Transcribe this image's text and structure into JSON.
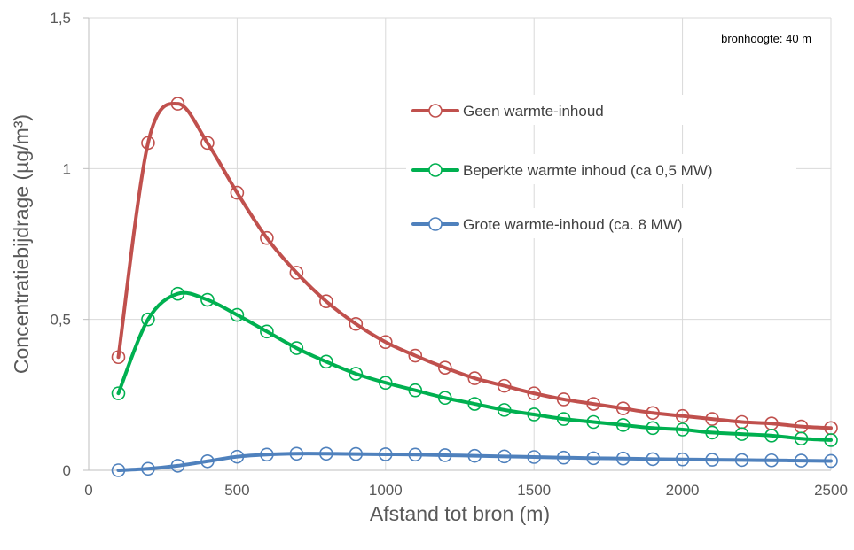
{
  "chart_data": {
    "type": "line",
    "title": "",
    "xlabel": "Afstand tot bron (m)",
    "ylabel": "Concentratiebijdrage  (µg/m³)",
    "xlim": [
      0,
      2500
    ],
    "ylim": [
      0,
      1.5
    ],
    "x_ticks": [
      0,
      500,
      1000,
      1500,
      2000,
      2500
    ],
    "x_tick_labels": [
      "0",
      "500",
      "1000",
      "1500",
      "2000",
      "2500"
    ],
    "y_ticks": [
      0,
      0.5,
      1,
      1.5
    ],
    "y_tick_labels": [
      "0",
      "0,5",
      "1",
      "1,5"
    ],
    "grid": true,
    "legend_position": "right",
    "annotation": "bronhoogte: 40 m",
    "x": [
      100,
      200,
      300,
      400,
      500,
      600,
      700,
      800,
      900,
      1000,
      1100,
      1200,
      1300,
      1400,
      1500,
      1600,
      1700,
      1800,
      1900,
      2000,
      2100,
      2200,
      2300,
      2400,
      2500
    ],
    "series": [
      {
        "name": "Geen warmte-inhoud",
        "color": "#c0504d",
        "values": [
          0.375,
          1.085,
          1.215,
          1.085,
          0.92,
          0.77,
          0.655,
          0.56,
          0.485,
          0.425,
          0.38,
          0.34,
          0.305,
          0.28,
          0.255,
          0.235,
          0.22,
          0.205,
          0.19,
          0.18,
          0.17,
          0.16,
          0.155,
          0.145,
          0.14
        ]
      },
      {
        "name": "Beperkte warmte inhoud (ca 0,5 MW)",
        "color": "#00b050",
        "values": [
          0.255,
          0.5,
          0.585,
          0.565,
          0.515,
          0.46,
          0.405,
          0.36,
          0.32,
          0.29,
          0.265,
          0.24,
          0.22,
          0.2,
          0.185,
          0.17,
          0.16,
          0.15,
          0.14,
          0.135,
          0.125,
          0.12,
          0.115,
          0.105,
          0.1
        ]
      },
      {
        "name": "Grote warmte-inhoud (ca. 8 MW)",
        "color": "#4f81bd",
        "values": [
          0.0,
          0.005,
          0.015,
          0.03,
          0.045,
          0.052,
          0.055,
          0.055,
          0.054,
          0.053,
          0.052,
          0.05,
          0.048,
          0.046,
          0.044,
          0.042,
          0.04,
          0.039,
          0.037,
          0.036,
          0.035,
          0.034,
          0.033,
          0.032,
          0.031
        ]
      }
    ]
  }
}
